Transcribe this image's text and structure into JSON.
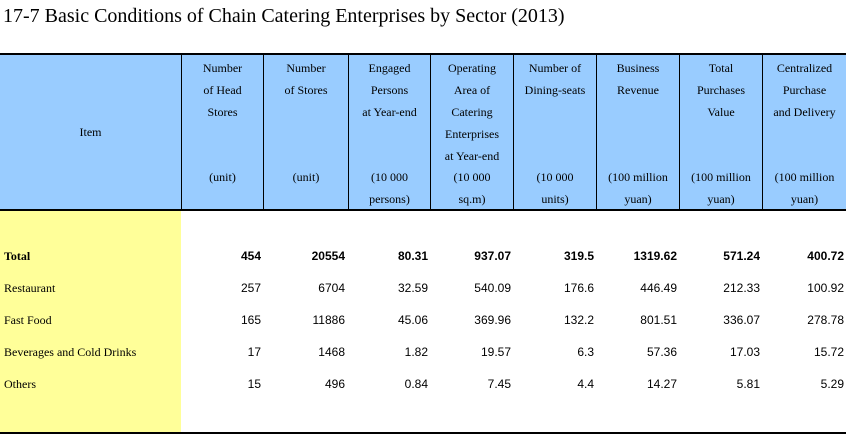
{
  "title": "17-7  Basic Conditions of Chain Catering Enterprises by Sector (2013)",
  "table": {
    "item_header": "Item",
    "columns": [
      {
        "label": "Number\nof Head\nStores",
        "unit": "(unit)"
      },
      {
        "label": "Number\nof Stores",
        "unit": "(unit)"
      },
      {
        "label": "Engaged\nPersons\nat Year-end",
        "unit": "(10 000\npersons)"
      },
      {
        "label": "Operating\nArea of\nCatering\nEnterprises\nat Year-end",
        "unit": "(10 000\nsq.m)"
      },
      {
        "label": "Number of\nDining-seats",
        "unit": "(10 000\nunits)"
      },
      {
        "label": "Business\nRevenue",
        "unit": "(100 million\nyuan)"
      },
      {
        "label": "Total\nPurchases\nValue",
        "unit": "(100 million\nyuan)"
      },
      {
        "label": "Centralized\nPurchase\nand Delivery",
        "unit": "(100 million\nyuan)"
      }
    ],
    "rows": [
      {
        "label": "Total",
        "values": [
          "454",
          "20554",
          "80.31",
          "937.07",
          "319.5",
          "1319.62",
          "571.24",
          "400.72"
        ]
      },
      {
        "label": "Restaurant",
        "values": [
          "257",
          "6704",
          "32.59",
          "540.09",
          "176.6",
          "446.49",
          "212.33",
          "100.92"
        ]
      },
      {
        "label": "Fast Food",
        "values": [
          "165",
          "11886",
          "45.06",
          "369.96",
          "132.2",
          "801.51",
          "336.07",
          "278.78"
        ]
      },
      {
        "label": "Beverages and Cold Drinks",
        "values": [
          "17",
          "1468",
          "1.82",
          "19.57",
          "6.3",
          "57.36",
          "17.03",
          "15.72"
        ]
      },
      {
        "label": "Others",
        "values": [
          "15",
          "496",
          "0.84",
          "7.45",
          "4.4",
          "14.27",
          "5.81",
          "5.29"
        ]
      }
    ]
  }
}
